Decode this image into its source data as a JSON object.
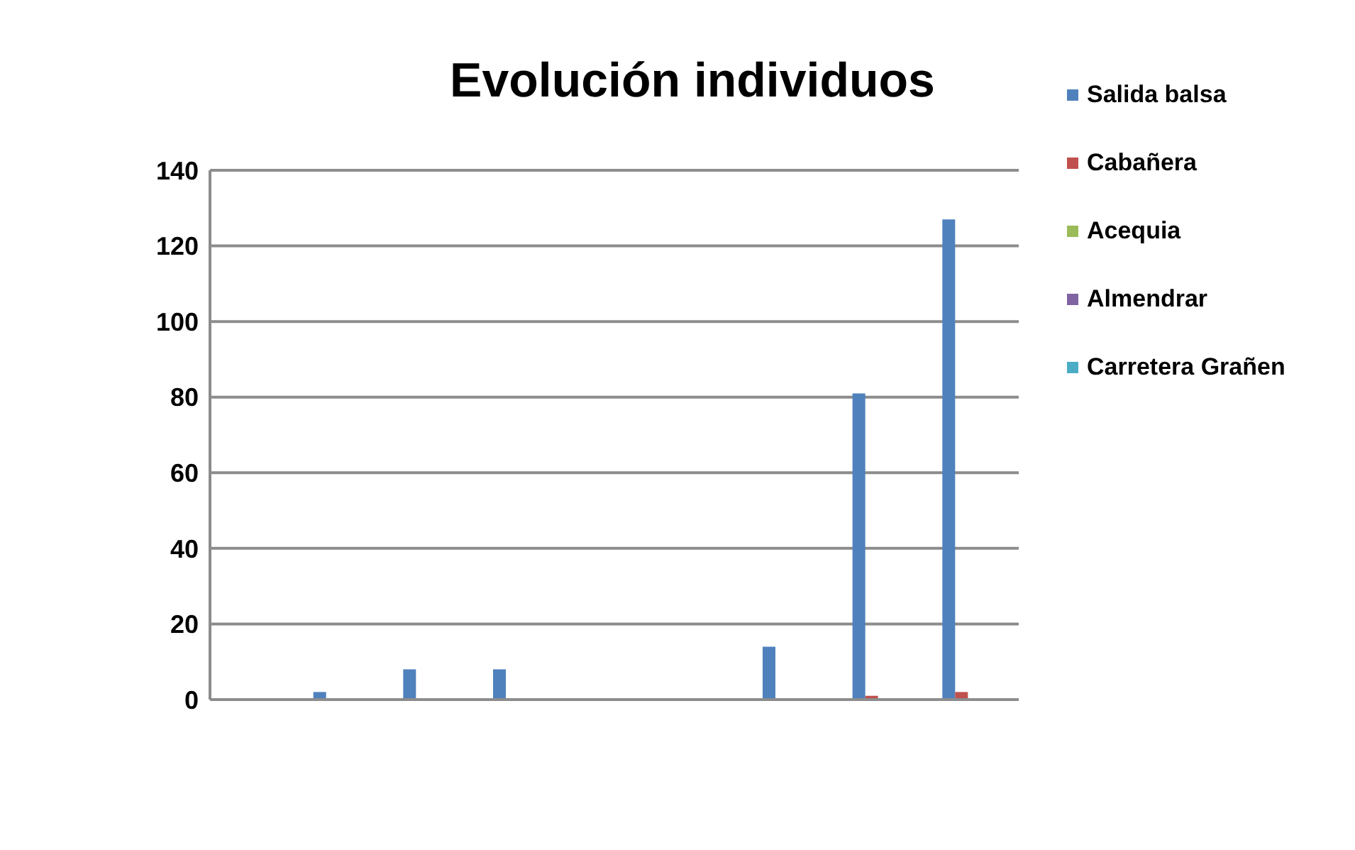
{
  "chart_data": {
    "type": "bar",
    "title": "Evolución individuos",
    "categories": [
      null,
      null,
      null,
      null,
      null,
      null,
      null,
      null,
      null
    ],
    "series": [
      {
        "name": "Salida balsa",
        "color": "#4f81bd",
        "values": [
          0,
          2,
          8,
          8,
          0,
          0,
          14,
          81,
          127
        ]
      },
      {
        "name": "Cabañera",
        "color": "#c0504d",
        "values": [
          0,
          0,
          0,
          0,
          0,
          0,
          0,
          1,
          2
        ]
      },
      {
        "name": "Acequia",
        "color": "#9bbb59",
        "values": [
          0,
          0,
          0,
          0,
          0,
          0,
          0,
          0,
          0
        ]
      },
      {
        "name": "Almendrar",
        "color": "#8064a2",
        "values": [
          0,
          0,
          0,
          0,
          0,
          0,
          0,
          0,
          0
        ]
      },
      {
        "name": "Carretera Grañen",
        "color": "#4bacc6",
        "values": [
          0,
          0,
          0,
          0,
          0,
          0,
          0,
          0,
          0
        ]
      }
    ],
    "ylim": [
      0,
      140
    ],
    "yticks": [
      0,
      20,
      40,
      60,
      80,
      100,
      120,
      140
    ],
    "grid": "y",
    "legend": "right"
  }
}
